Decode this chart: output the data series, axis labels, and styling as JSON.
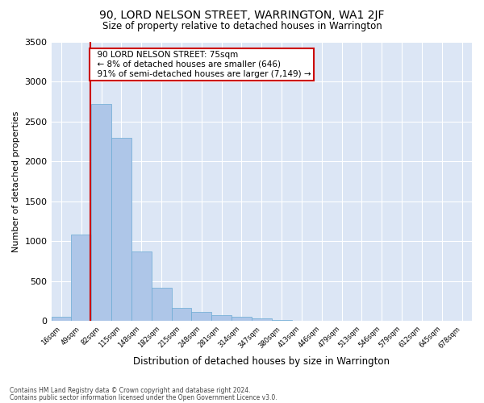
{
  "title": "90, LORD NELSON STREET, WARRINGTON, WA1 2JF",
  "subtitle": "Size of property relative to detached houses in Warrington",
  "xlabel": "Distribution of detached houses by size in Warrington",
  "ylabel": "Number of detached properties",
  "footnote1": "Contains HM Land Registry data © Crown copyright and database right 2024.",
  "footnote2": "Contains public sector information licensed under the Open Government Licence v3.0.",
  "annotation_line1": "90 LORD NELSON STREET: 75sqm",
  "annotation_line2": "← 8% of detached houses are smaller (646)",
  "annotation_line3": "91% of semi-detached houses are larger (7,149) →",
  "bar_color": "#aec6e8",
  "bar_edge_color": "#6aaad4",
  "marker_color": "#cc0000",
  "background_color": "#dce6f5",
  "bins": [
    "16sqm",
    "49sqm",
    "82sqm",
    "115sqm",
    "148sqm",
    "182sqm",
    "215sqm",
    "248sqm",
    "281sqm",
    "314sqm",
    "347sqm",
    "380sqm",
    "413sqm",
    "446sqm",
    "479sqm",
    "513sqm",
    "546sqm",
    "579sqm",
    "612sqm",
    "645sqm",
    "678sqm"
  ],
  "values": [
    50,
    1080,
    2720,
    2290,
    870,
    420,
    165,
    110,
    70,
    55,
    35,
    10,
    8,
    6,
    4,
    3,
    2,
    2,
    2,
    2,
    2
  ],
  "marker_bin_edge": 1.5,
  "ylim": [
    0,
    3500
  ],
  "yticks": [
    0,
    500,
    1000,
    1500,
    2000,
    2500,
    3000,
    3500
  ]
}
